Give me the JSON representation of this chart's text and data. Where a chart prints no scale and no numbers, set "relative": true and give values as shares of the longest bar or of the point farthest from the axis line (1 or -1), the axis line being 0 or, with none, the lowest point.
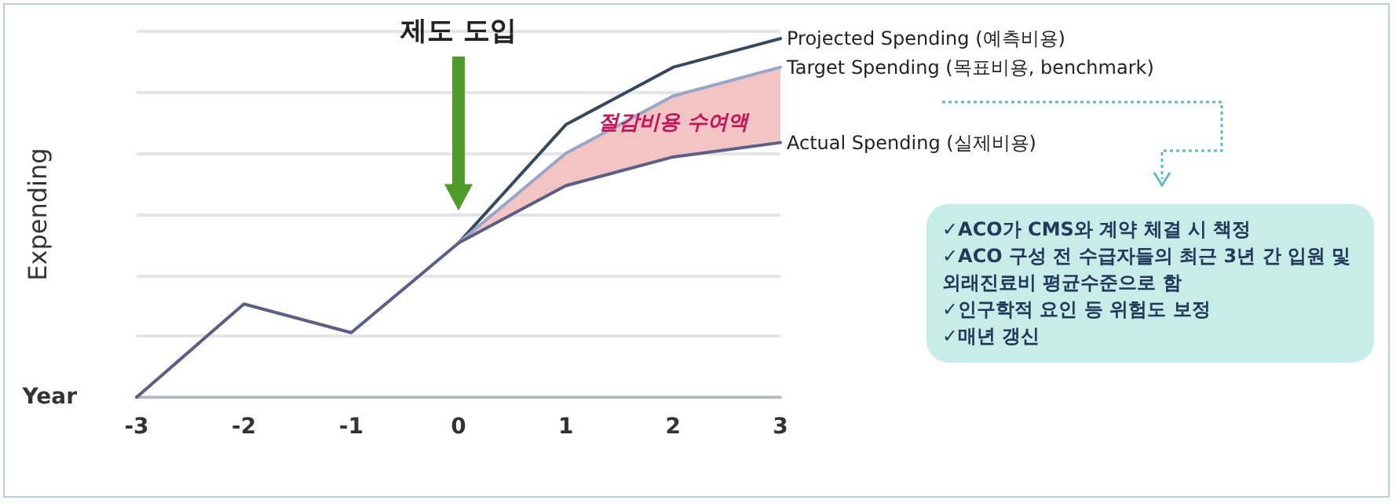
{
  "chart_data": {
    "type": "line",
    "relative": true,
    "xlabel": "Year",
    "ylabel": "Expending",
    "categories": [
      "-3",
      "-2",
      "-1",
      "0",
      "1",
      "2",
      "3"
    ],
    "series": [
      {
        "name": "Projected Spending (예측비용)",
        "color": "#34495e",
        "values": [
          null,
          null,
          null,
          0.43,
          0.76,
          0.92,
          1
        ]
      },
      {
        "name": "Target Spending (목표비용, benchmark)",
        "color": "#9aa6c6",
        "values": [
          null,
          null,
          null,
          0.43,
          0.68,
          0.84,
          0.92
        ],
        "lower": [
          null,
          null,
          null,
          0.43,
          0.59,
          0.67,
          0.71
        ],
        "upper": [
          null,
          null,
          null,
          0.43,
          0.68,
          0.84,
          0.92
        ]
      },
      {
        "name": "Actual Spending (실제비용)",
        "color": "#5c5f85",
        "values": [
          0,
          0.26,
          0.18,
          0.43,
          0.59,
          0.67,
          0.71
        ]
      }
    ],
    "annotations": [
      "제도 도입",
      "절감비용 수여액",
      "✓ACO가 CMS와 계약 체결 시 책정",
      "✓ACO 구성 전 수급자들의 최근 3년 간 입원 및 외래진료비 평균수준으로 함",
      "✓인구학적 요인 등 위험도 보정",
      "✓매년 갱신"
    ],
    "grid": "y",
    "legend": false,
    "marker": "none",
    "line_style": "solid"
  }
}
